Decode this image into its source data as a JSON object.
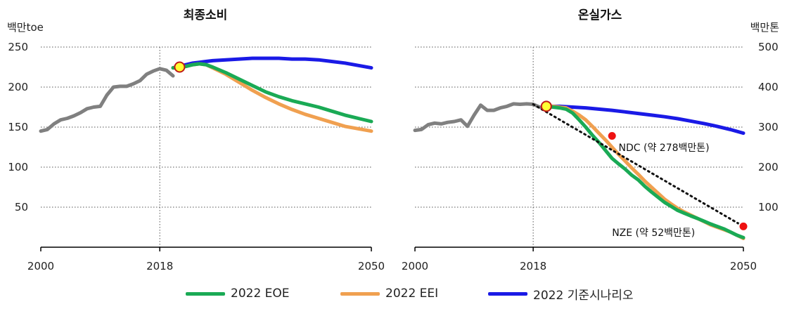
{
  "legend": [
    {
      "label": "2022 EOE",
      "color": "#1aaa55"
    },
    {
      "label": "2022 EEI",
      "color": "#f0a050"
    },
    {
      "label": "2022 기준시나리오",
      "color": "#1a1ae6"
    }
  ],
  "colors": {
    "history": "#808080",
    "eoe": "#1aaa55",
    "eei": "#f0a050",
    "base": "#1a1ae6",
    "marker_yellow": "#ffff33",
    "marker_red": "#ee1111"
  },
  "chart_data": [
    {
      "type": "line",
      "title": "최종소비",
      "ylabel": "백만toe",
      "x_ticks": [
        "2000",
        "2018",
        "2050"
      ],
      "y_ticks": [
        "50",
        "100",
        "150",
        "200",
        "250"
      ],
      "xlim": [
        2000,
        2050
      ],
      "ylim": [
        0,
        250
      ],
      "grid": "horizontal dotted",
      "vline": 2018,
      "series": [
        {
          "key": "history",
          "x": [
            2000,
            2001,
            2002,
            2003,
            2004,
            2005,
            2006,
            2007,
            2008,
            2009,
            2010,
            2011,
            2012,
            2013,
            2014,
            2015,
            2016,
            2017,
            2018,
            2019,
            2020
          ],
          "y": [
            145,
            147,
            154,
            159,
            161,
            164,
            168,
            173,
            175,
            176,
            190,
            200,
            201,
            201,
            204,
            208,
            216,
            220,
            223,
            221,
            214
          ]
        },
        {
          "key": "eoe",
          "name": "2022 EOE",
          "x": [
            2020,
            2021,
            2022,
            2023,
            2024,
            2025,
            2026,
            2028,
            2030,
            2032,
            2034,
            2036,
            2038,
            2040,
            2042,
            2044,
            2046,
            2048,
            2050
          ],
          "y": [
            224,
            224,
            226,
            228,
            229,
            228,
            225,
            218,
            210,
            202,
            194,
            188,
            183,
            179,
            175,
            170,
            165,
            161,
            157
          ]
        },
        {
          "key": "eei",
          "name": "2022 EEI",
          "x": [
            2020,
            2021,
            2022,
            2023,
            2024,
            2025,
            2026,
            2028,
            2030,
            2032,
            2034,
            2036,
            2038,
            2040,
            2042,
            2044,
            2046,
            2048,
            2050
          ],
          "y": [
            224,
            224,
            226,
            228,
            229,
            228,
            224,
            216,
            206,
            196,
            187,
            179,
            172,
            166,
            161,
            156,
            151,
            148,
            145
          ]
        },
        {
          "key": "base",
          "name": "2022 기준시나리오",
          "x": [
            2020,
            2021,
            2022,
            2023,
            2024,
            2025,
            2026,
            2028,
            2030,
            2032,
            2034,
            2036,
            2038,
            2040,
            2042,
            2044,
            2046,
            2048,
            2050
          ],
          "y": [
            224,
            226,
            228,
            230,
            231,
            232,
            233,
            234,
            235,
            236,
            236,
            236,
            235,
            235,
            234,
            232,
            230,
            227,
            224
          ]
        }
      ],
      "markers": [
        {
          "x": 2021,
          "y": 225,
          "color": "yellow"
        }
      ],
      "annotations": []
    },
    {
      "type": "line",
      "title": "온실가스",
      "ylabel": "백만톤",
      "x_ticks": [
        "2000",
        "2018",
        "2050"
      ],
      "y_ticks": [
        "100",
        "200",
        "300",
        "400",
        "500"
      ],
      "xlim": [
        2000,
        2050
      ],
      "ylim": [
        0,
        500
      ],
      "grid": "horizontal dotted",
      "vline": 2018,
      "series": [
        {
          "key": "history",
          "x": [
            2000,
            2001,
            2002,
            2003,
            2004,
            2005,
            2006,
            2007,
            2008,
            2009,
            2010,
            2011,
            2012,
            2013,
            2014,
            2015,
            2016,
            2017,
            2018,
            2019
          ],
          "y": [
            292,
            294,
            306,
            310,
            308,
            312,
            314,
            318,
            302,
            330,
            355,
            342,
            342,
            348,
            352,
            358,
            357,
            358,
            357,
            350
          ]
        },
        {
          "key": "eoe",
          "name": "2022 EOE",
          "x": [
            2020,
            2021,
            2022,
            2023,
            2024,
            2025,
            2026,
            2027,
            2028,
            2029,
            2030,
            2031,
            2032,
            2033,
            2034,
            2035,
            2036,
            2037,
            2038,
            2039,
            2040,
            2041,
            2042,
            2043,
            2044,
            2045,
            2046,
            2047,
            2048,
            2049,
            2050
          ],
          "y": [
            352,
            350,
            348,
            345,
            335,
            318,
            300,
            280,
            262,
            242,
            222,
            208,
            195,
            180,
            168,
            152,
            138,
            125,
            112,
            102,
            92,
            85,
            78,
            72,
            65,
            58,
            52,
            46,
            38,
            30,
            24
          ]
        },
        {
          "key": "eei",
          "name": "2022 EEI",
          "x": [
            2020,
            2021,
            2022,
            2023,
            2024,
            2025,
            2026,
            2027,
            2028,
            2029,
            2030,
            2031,
            2032,
            2033,
            2034,
            2035,
            2036,
            2037,
            2038,
            2039,
            2040,
            2041,
            2042,
            2043,
            2044,
            2045,
            2046,
            2047,
            2048,
            2049,
            2050
          ],
          "y": [
            352,
            352,
            350,
            348,
            340,
            330,
            318,
            302,
            285,
            268,
            250,
            232,
            215,
            198,
            182,
            165,
            150,
            135,
            120,
            108,
            97,
            88,
            80,
            72,
            64,
            56,
            50,
            44,
            38,
            30,
            22
          ]
        },
        {
          "key": "base",
          "name": "2022 기준시나리오",
          "x": [
            2020,
            2022,
            2024,
            2026,
            2028,
            2030,
            2032,
            2034,
            2036,
            2038,
            2040,
            2042,
            2044,
            2046,
            2048,
            2050
          ],
          "y": [
            352,
            352,
            350,
            348,
            345,
            342,
            338,
            334,
            330,
            326,
            321,
            315,
            309,
            302,
            294,
            285
          ]
        },
        {
          "key": "ndc_path",
          "x": [
            2018,
            2050
          ],
          "y": [
            357,
            52
          ]
        }
      ],
      "markers": [
        {
          "x": 2020,
          "y": 352,
          "color": "yellow"
        },
        {
          "x": 2030,
          "y": 278,
          "color": "red"
        },
        {
          "x": 2050,
          "y": 52,
          "color": "red"
        }
      ],
      "annotations": [
        {
          "text": "NDC (약 278백만톤)",
          "x": 2031,
          "y": 240
        },
        {
          "text": "NZE (약 52백만톤)",
          "x": 2030,
          "y": 28
        }
      ]
    }
  ]
}
